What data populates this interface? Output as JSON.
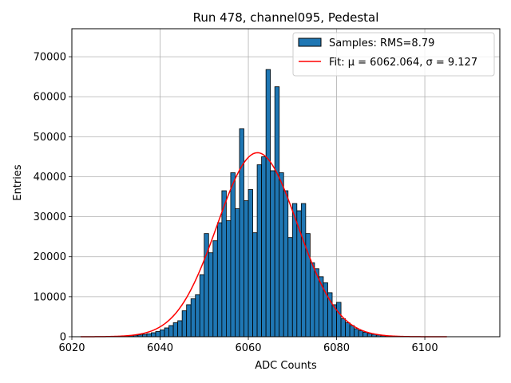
{
  "chart_data": {
    "type": "bar",
    "title": "Run 478, channel095, Pedestal",
    "xlabel": "ADC Counts",
    "ylabel": "Entries",
    "xlim": [
      6020,
      6117
    ],
    "ylim": [
      0,
      77000
    ],
    "xticks": [
      6020,
      6040,
      6060,
      6080,
      6100
    ],
    "yticks": [
      0,
      10000,
      20000,
      30000,
      40000,
      50000,
      60000,
      70000
    ],
    "grid": true,
    "legend_position": "upper right",
    "series": [
      {
        "name": "Samples: RMS=8.79",
        "kind": "histogram",
        "color": "#1f77b4",
        "edge_color": "#000000",
        "bin_width": 1,
        "bins": [
          [
            6030,
            100
          ],
          [
            6031,
            150
          ],
          [
            6032,
            200
          ],
          [
            6033,
            250
          ],
          [
            6034,
            350
          ],
          [
            6035,
            450
          ],
          [
            6036,
            600
          ],
          [
            6037,
            750
          ],
          [
            6038,
            1000
          ],
          [
            6039,
            1300
          ],
          [
            6040,
            1700
          ],
          [
            6041,
            2200
          ],
          [
            6042,
            2800
          ],
          [
            6043,
            3500
          ],
          [
            6044,
            4000
          ],
          [
            6045,
            6500
          ],
          [
            6046,
            8000
          ],
          [
            6047,
            9500
          ],
          [
            6048,
            10500
          ],
          [
            6049,
            15500
          ],
          [
            6050,
            25800
          ],
          [
            6051,
            21000
          ],
          [
            6052,
            24000
          ],
          [
            6053,
            28500
          ],
          [
            6054,
            36500
          ],
          [
            6055,
            29000
          ],
          [
            6056,
            41000
          ],
          [
            6057,
            32000
          ],
          [
            6058,
            52000
          ],
          [
            6059,
            34000
          ],
          [
            6060,
            36800
          ],
          [
            6061,
            26000
          ],
          [
            6062,
            43000
          ],
          [
            6063,
            45000
          ],
          [
            6064,
            66800
          ],
          [
            6065,
            41500
          ],
          [
            6066,
            62500
          ],
          [
            6067,
            41000
          ],
          [
            6068,
            36500
          ],
          [
            6069,
            24800
          ],
          [
            6070,
            33300
          ],
          [
            6071,
            31500
          ],
          [
            6072,
            33300
          ],
          [
            6073,
            25800
          ],
          [
            6074,
            18500
          ],
          [
            6075,
            17000
          ],
          [
            6076,
            15000
          ],
          [
            6077,
            13500
          ],
          [
            6078,
            11000
          ],
          [
            6079,
            8000
          ],
          [
            6080,
            8600
          ],
          [
            6081,
            4500
          ],
          [
            6082,
            3500
          ],
          [
            6083,
            2800
          ],
          [
            6084,
            2000
          ],
          [
            6085,
            1500
          ],
          [
            6086,
            1100
          ],
          [
            6087,
            800
          ],
          [
            6088,
            600
          ],
          [
            6089,
            400
          ],
          [
            6090,
            250
          ],
          [
            6091,
            150
          ],
          [
            6092,
            100
          ],
          [
            6093,
            60
          ],
          [
            6094,
            30
          ]
        ]
      },
      {
        "name": "Fit: μ = 6062.064, σ = 9.127",
        "kind": "gaussian_fit",
        "color": "#ff0000",
        "mu": 6062.064,
        "sigma": 9.127,
        "amplitude": 46000,
        "x_range": [
          6022,
          6105
        ]
      }
    ]
  }
}
